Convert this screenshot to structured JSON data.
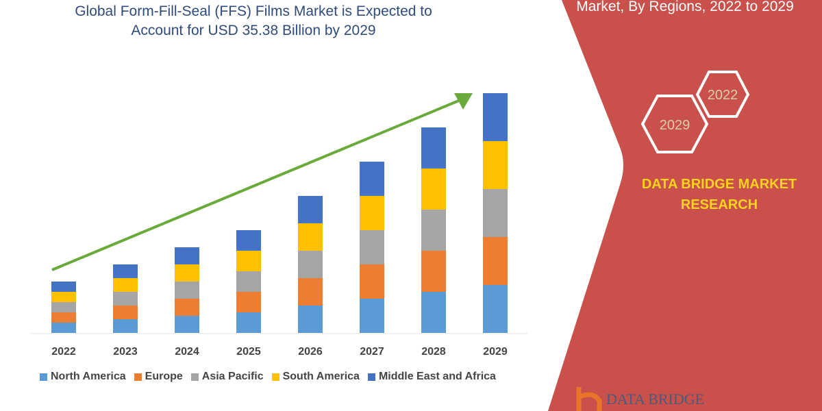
{
  "header": {
    "title_line1": "Global Form-Fill-Seal (FFS) Films Market is Expected to",
    "title_line2": "Account for USD 35.38 Billion by 2029",
    "right_title": "Market, By Regions, 2022 to 2029"
  },
  "badges": {
    "year_a": "2022",
    "year_b": "2029"
  },
  "brand": {
    "line1": "DATA BRIDGE MARKET",
    "line2": "RESEARCH",
    "logo_text": "DATA BRIDGE"
  },
  "colors": {
    "panel": "#c9504b",
    "brand_text": "#ffd21f",
    "arrow": "#6aaa3a"
  },
  "chart_data": {
    "type": "bar",
    "stacked": true,
    "title": "",
    "xlabel": "",
    "ylabel": "",
    "y_axis_shown": false,
    "grid": false,
    "legend_position": "bottom",
    "trend_arrow": true,
    "categories": [
      "2022",
      "2023",
      "2024",
      "2025",
      "2026",
      "2027",
      "2028",
      "2029"
    ],
    "series": [
      {
        "name": "North America",
        "color": "#5b9bd5",
        "values": [
          15,
          20,
          25,
          30,
          40,
          50,
          60,
          70
        ]
      },
      {
        "name": "Europe",
        "color": "#ed7d31",
        "values": [
          15,
          20,
          25,
          30,
          40,
          50,
          60,
          70
        ]
      },
      {
        "name": "Asia Pacific",
        "color": "#a5a5a5",
        "values": [
          15,
          20,
          25,
          30,
          40,
          50,
          60,
          70
        ]
      },
      {
        "name": "South America",
        "color": "#ffc000",
        "values": [
          15,
          20,
          25,
          30,
          40,
          50,
          60,
          70
        ]
      },
      {
        "name": "Middle East and Africa",
        "color": "#4472c4",
        "values": [
          15,
          20,
          25,
          30,
          40,
          50,
          60,
          70
        ]
      }
    ]
  }
}
